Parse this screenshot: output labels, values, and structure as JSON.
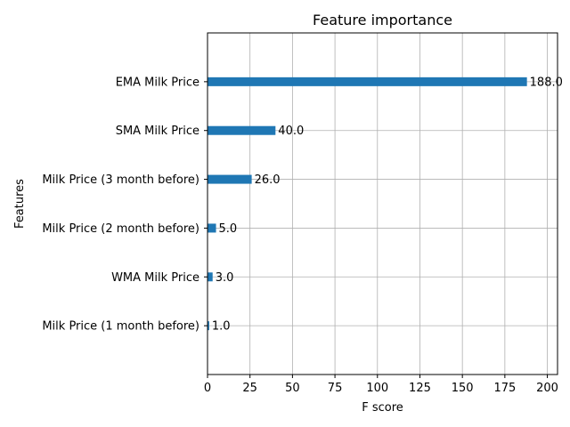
{
  "chart_data": {
    "type": "bar",
    "orientation": "horizontal",
    "title": "Feature importance",
    "xlabel": "F score",
    "ylabel": "Features",
    "categories": [
      "Milk Price (1 month before)",
      "WMA Milk Price",
      "Milk Price (2 month before)",
      "Milk Price (3 month before)",
      "SMA Milk Price",
      "EMA Milk Price"
    ],
    "values": [
      1.0,
      3.0,
      5.0,
      26.0,
      40.0,
      188.0
    ],
    "value_labels": [
      "1.0",
      "3.0",
      "5.0",
      "26.0",
      "40.0",
      "188.0"
    ],
    "xlim": [
      0,
      206
    ],
    "xticks": [
      0,
      25,
      50,
      75,
      100,
      125,
      150,
      175,
      200
    ],
    "grid": true,
    "bar_color": "#1f77b4"
  }
}
